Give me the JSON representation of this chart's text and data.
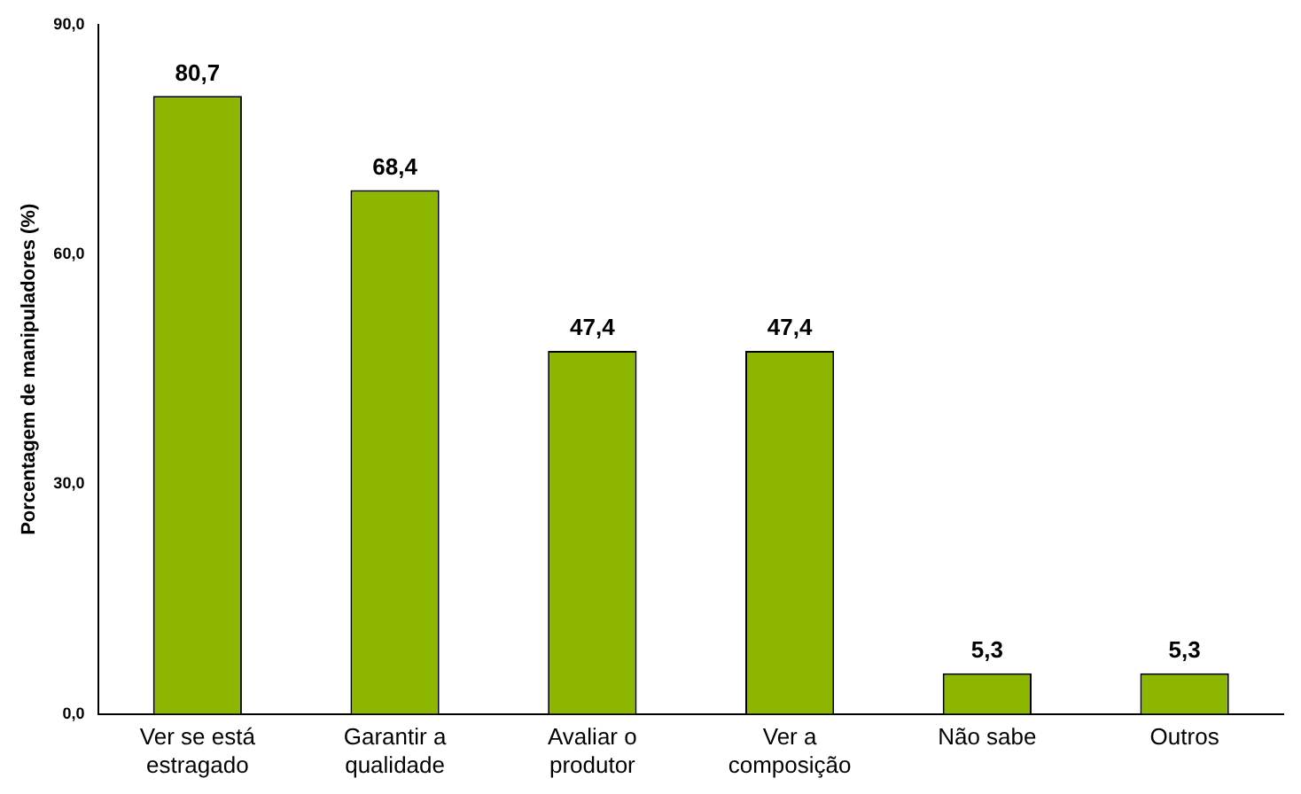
{
  "chart_data": {
    "type": "bar",
    "ylabel": "Porcentagem de manipuladores (%)",
    "categories": [
      "Ver se está estragado",
      "Garantir a qualidade",
      "Avaliar o produtor",
      "Ver a composição",
      "Não sabe",
      "Outros"
    ],
    "values": [
      80.7,
      68.4,
      47.4,
      47.4,
      5.3,
      5.3
    ],
    "value_labels": [
      "80,7",
      "68,4",
      "47,4",
      "47,4",
      "5,3",
      "5,3"
    ],
    "color": "#8db600",
    "ylim": [
      0,
      90
    ],
    "yticks": [
      {
        "value": 0,
        "label": "0,0"
      },
      {
        "value": 30,
        "label": "30,0"
      },
      {
        "value": 60,
        "label": "60,0"
      },
      {
        "value": 90,
        "label": "90,0"
      }
    ],
    "grid": false
  }
}
